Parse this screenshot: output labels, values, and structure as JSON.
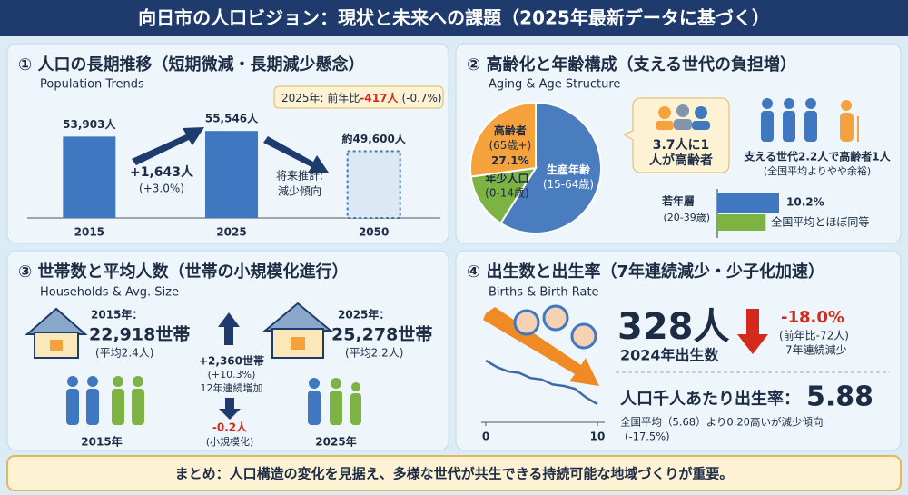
{
  "title": "向日市の人口ビジョン：現状と未来への課題（2025年最新データに基づく）",
  "panel1": {
    "heading": "① 人口の長期推移（短期微減・長期減少懸念）",
    "subheading": "Population Trends",
    "change": "+1,643人",
    "change_pct": "(+3.0%)",
    "callout": [
      "2025年: 前年比",
      "-417人",
      "(-0.7%)"
    ],
    "projection": [
      "将来推計:",
      "減少傾向"
    ]
  },
  "panel2": {
    "heading": "② 高齢化と年齢構成（支える世代の負担増）",
    "subheading": "Aging & Age Structure",
    "bubble": [
      "3.7人に1",
      "人が高齢者"
    ],
    "support": "支える世代2.2人で高齢者1人",
    "support_note": "(全国平均よりやや余裕)",
    "young_label": "若年層",
    "young_range": "(20-39歳)"
  },
  "panel3": {
    "heading": "③ 世帯数と平均人数（世帯の小規模化進行）",
    "subheading": "Households & Avg. Size",
    "left": {
      "year": "2015年：",
      "households": "22,918世帯",
      "avg": "(平均2.4人)",
      "caption": "2015年"
    },
    "right": {
      "year": "2025年：",
      "households": "25,278世帯",
      "avg": "(平均2.2人)",
      "caption": "2025年"
    },
    "increase": [
      "+2,360世帯",
      "(+10.3%)",
      "12年連続増加"
    ],
    "decrease": [
      "-0.2人",
      "(小規模化)"
    ]
  },
  "panel4": {
    "heading": "④ 出生数と出生率（7年連続減少・少子化加速）",
    "subheading": "Births & Birth Rate",
    "births": "328人",
    "births_label": "2024年出生数",
    "births_change": "-18.0%",
    "births_change_note": [
      "(前年比-72人)",
      "7年連続減少"
    ],
    "rate_label": "人口千人あたり出生率：",
    "rate": "5.88",
    "rate_note": "全国平均（5.68）より0.20高いが減少傾向",
    "rate_change": "(-17.5%)"
  },
  "footer": "まとめ：人口構造の変化を見据え、多様な世代が共生できる持続可能な地域づくりが重要。",
  "chart_data": [
    {
      "type": "bar",
      "categories": [
        "2015",
        "2025",
        "2050"
      ],
      "values": [
        53903,
        55546,
        49600
      ],
      "value_labels": [
        "53,903人",
        "55,546人",
        "約49,600人"
      ],
      "color": "#3f78c1",
      "dashed": [
        false,
        false,
        true
      ],
      "ylim": [
        30000,
        58000
      ]
    },
    {
      "type": "pie",
      "categories": [
        "生産年齢",
        "年少人口",
        "高齢者"
      ],
      "sublabels": [
        "(15-64歳)",
        "(0-14歳)",
        "(65歳+)"
      ],
      "values": [
        59.0,
        13.9,
        27.1
      ],
      "value_labels": [
        null,
        null,
        "27.1%"
      ],
      "colors": [
        "#4a7cc0",
        "#7cb342",
        "#f5a23c"
      ]
    },
    {
      "type": "bar",
      "orientation": "horizontal",
      "values": [
        10.2,
        8.0
      ],
      "value_labels": [
        "10.2%",
        null
      ],
      "note": "全国平均とほぼ同等",
      "colors": [
        "#3f78c1",
        "#7cb342"
      ],
      "xlim": [
        0,
        15
      ]
    },
    {
      "type": "line",
      "x": [
        0,
        1,
        2,
        3,
        4,
        5,
        6,
        7,
        8,
        9,
        10
      ],
      "values": [
        8.5,
        7.6,
        7.0,
        6.8,
        6.1,
        5.9,
        5.2,
        5.0,
        4.6,
        3.4,
        2.5
      ],
      "color": "#3f6aa8",
      "xlim": [
        0,
        10
      ],
      "xticks": [
        0,
        10
      ],
      "ylim": [
        0,
        10
      ]
    }
  ]
}
